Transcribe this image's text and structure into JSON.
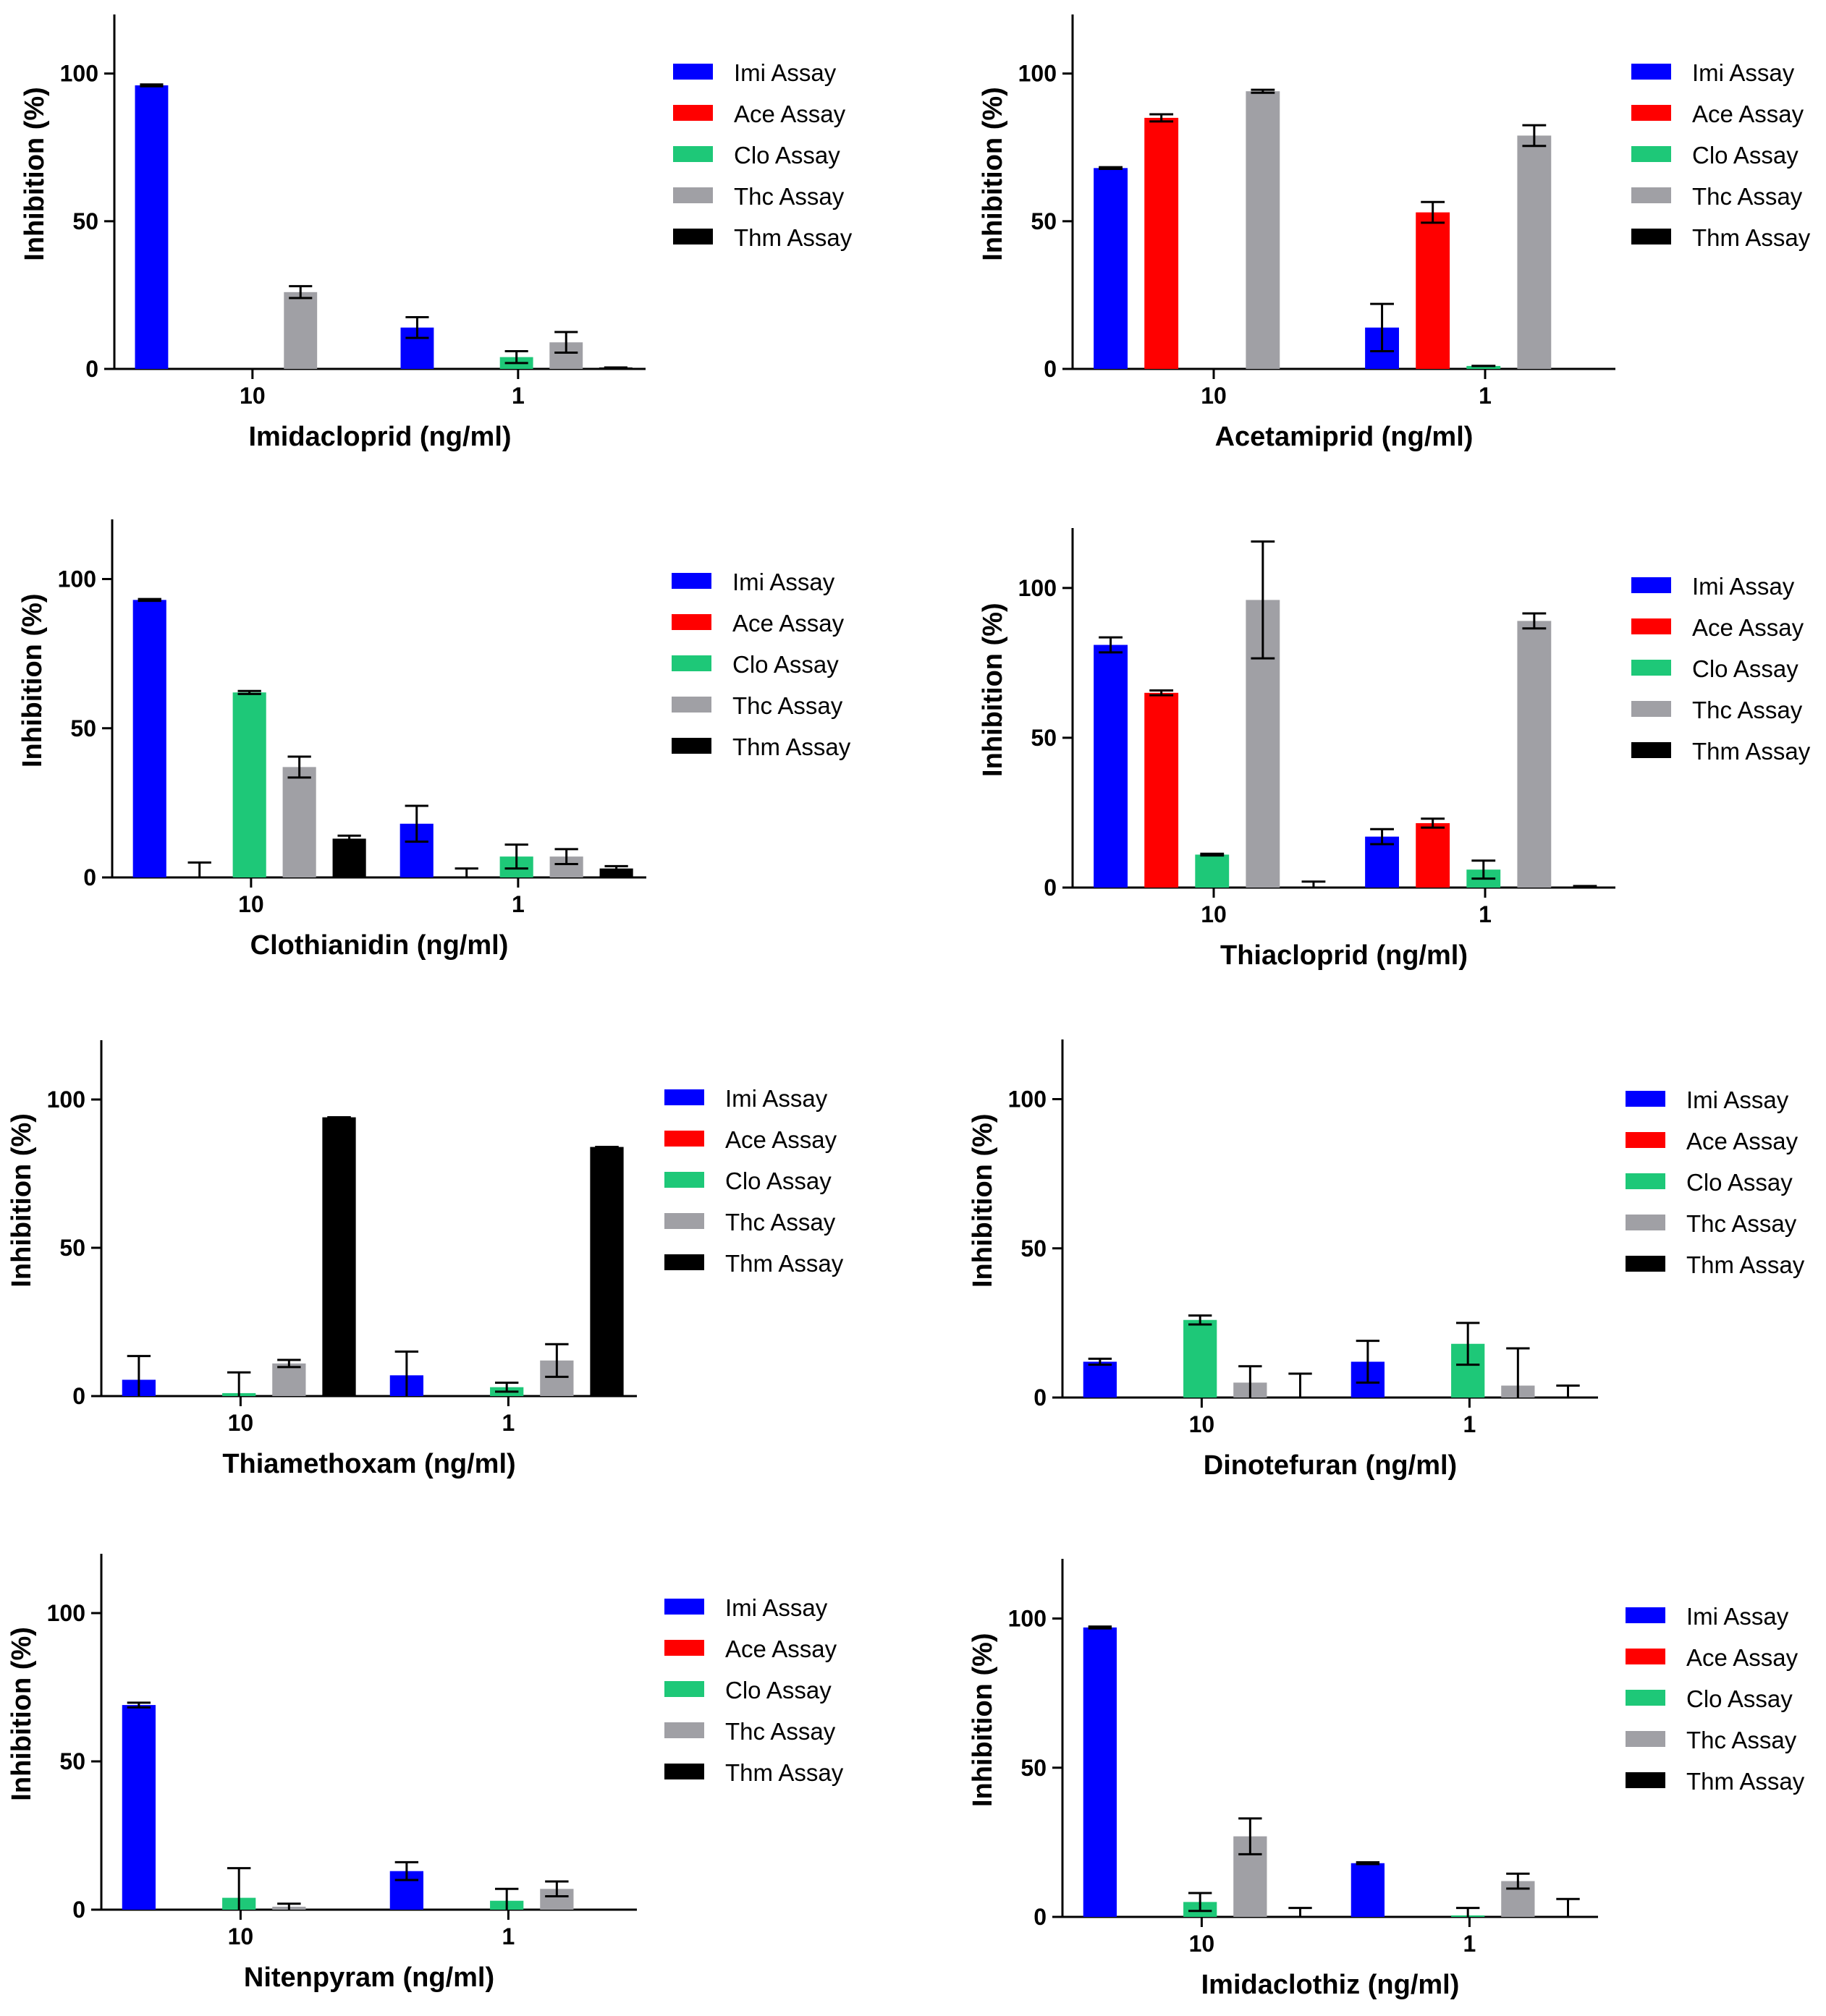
{
  "colors": {
    "Imi Assay": "#0000ff",
    "Ace Assay": "#ff0000",
    "Clo Assay": "#1ec878",
    "Thc Assay": "#a0a0a5",
    "Thm Assay": "#000000"
  },
  "chart_data": [
    {
      "type": "bar",
      "title": "",
      "xlabel": "Imidacloprid (ng/ml)",
      "ylabel": "Inhibition (%)",
      "ylim": [
        0,
        120
      ],
      "yticks": [
        "0",
        "50",
        "100"
      ],
      "categories": [
        "10",
        "1"
      ],
      "legend": [
        "Imi Assay",
        "Ace Assay",
        "Clo Assay",
        "Thc Assay",
        "Thm Assay"
      ],
      "series": [
        {
          "name": "Imi Assay",
          "values": [
            96,
            14
          ],
          "errors": [
            0.3,
            3.5
          ]
        },
        {
          "name": "Ace Assay",
          "values": [
            null,
            null
          ],
          "errors": [
            null,
            null
          ]
        },
        {
          "name": "Clo Assay",
          "values": [
            null,
            4
          ],
          "errors": [
            null,
            2
          ]
        },
        {
          "name": "Thc Assay",
          "values": [
            26,
            9
          ],
          "errors": [
            2,
            3.5
          ]
        },
        {
          "name": "Thm Assay",
          "values": [
            null,
            0.5
          ],
          "errors": [
            null,
            0
          ]
        }
      ]
    },
    {
      "type": "bar",
      "title": "",
      "xlabel": "Acetamiprid (ng/ml)",
      "ylabel": "Inhibition (%)",
      "ylim": [
        0,
        120
      ],
      "yticks": [
        "0",
        "50",
        "100"
      ],
      "categories": [
        "10",
        "1"
      ],
      "legend": [
        "Imi Assay",
        "Ace Assay",
        "Clo Assay",
        "Thc Assay",
        "Thm Assay"
      ],
      "series": [
        {
          "name": "Imi Assay",
          "values": [
            68,
            14
          ],
          "errors": [
            0.3,
            8
          ]
        },
        {
          "name": "Ace Assay",
          "values": [
            85,
            53
          ],
          "errors": [
            1.2,
            3.5
          ]
        },
        {
          "name": "Clo Assay",
          "values": [
            null,
            1
          ],
          "errors": [
            null,
            0
          ]
        },
        {
          "name": "Thc Assay",
          "values": [
            94,
            79
          ],
          "errors": [
            0.5,
            3.5
          ]
        },
        {
          "name": "Thm Assay",
          "values": [
            null,
            null
          ],
          "errors": [
            null,
            null
          ]
        }
      ]
    },
    {
      "type": "bar",
      "title": "",
      "xlabel": "Clothianidin (ng/ml)",
      "ylabel": "Inhibition (%)",
      "ylim": [
        0,
        120
      ],
      "yticks": [
        "0",
        "50",
        "100"
      ],
      "categories": [
        "10",
        "1"
      ],
      "legend": [
        "Imi Assay",
        "Ace Assay",
        "Clo Assay",
        "Thc Assay",
        "Thm Assay"
      ],
      "series": [
        {
          "name": "Imi Assay",
          "values": [
            93,
            18
          ],
          "errors": [
            0.3,
            6
          ]
        },
        {
          "name": "Ace Assay",
          "values": [
            0,
            0
          ],
          "errors": [
            5,
            3
          ]
        },
        {
          "name": "Clo Assay",
          "values": [
            62,
            7
          ],
          "errors": [
            0.5,
            4
          ]
        },
        {
          "name": "Thc Assay",
          "values": [
            37,
            7
          ],
          "errors": [
            3.5,
            2.5
          ]
        },
        {
          "name": "Thm Assay",
          "values": [
            13,
            3
          ],
          "errors": [
            1,
            0.8
          ]
        }
      ]
    },
    {
      "type": "bar",
      "title": "",
      "xlabel": "Thiacloprid (ng/ml)",
      "ylabel": "Inhibition (%)",
      "ylim": [
        0,
        120
      ],
      "yticks": [
        "0",
        "50",
        "100"
      ],
      "categories": [
        "10",
        "1"
      ],
      "legend": [
        "Imi Assay",
        "Ace Assay",
        "Clo Assay",
        "Thc Assay",
        "Thm Assay"
      ],
      "series": [
        {
          "name": "Imi Assay",
          "values": [
            81,
            17
          ],
          "errors": [
            2.5,
            2.5
          ]
        },
        {
          "name": "Ace Assay",
          "values": [
            65,
            21.5
          ],
          "errors": [
            0.8,
            1.5
          ]
        },
        {
          "name": "Clo Assay",
          "values": [
            11,
            6
          ],
          "errors": [
            0.3,
            3
          ]
        },
        {
          "name": "Thc Assay",
          "values": [
            96,
            89
          ],
          "errors": [
            19.5,
            2.5
          ]
        },
        {
          "name": "Thm Assay",
          "values": [
            0,
            0
          ],
          "errors": [
            2,
            0.5
          ]
        }
      ]
    },
    {
      "type": "bar",
      "title": "",
      "xlabel": "Thiamethoxam (ng/ml)",
      "ylabel": "Inhibition (%)",
      "ylim": [
        0,
        120
      ],
      "yticks": [
        "0",
        "50",
        "100"
      ],
      "categories": [
        "10",
        "1"
      ],
      "legend": [
        "Imi Assay",
        "Ace Assay",
        "Clo Assay",
        "Thc Assay",
        "Thm Assay"
      ],
      "series": [
        {
          "name": "Imi Assay",
          "values": [
            5.5,
            7
          ],
          "errors": [
            8,
            8
          ]
        },
        {
          "name": "Ace Assay",
          "values": [
            null,
            null
          ],
          "errors": [
            null,
            null
          ]
        },
        {
          "name": "Clo Assay",
          "values": [
            1,
            3
          ],
          "errors": [
            7,
            1.5
          ]
        },
        {
          "name": "Thc Assay",
          "values": [
            11,
            12
          ],
          "errors": [
            1.2,
            5.5
          ]
        },
        {
          "name": "Thm Assay",
          "values": [
            94,
            84
          ],
          "errors": [
            0,
            0
          ]
        }
      ]
    },
    {
      "type": "bar",
      "title": "",
      "xlabel": "Dinotefuran (ng/ml)",
      "ylabel": "Inhibition (%)",
      "ylim": [
        0,
        120
      ],
      "yticks": [
        "0",
        "50",
        "100"
      ],
      "categories": [
        "10",
        "1"
      ],
      "legend": [
        "Imi Assay",
        "Ace Assay",
        "Clo Assay",
        "Thc Assay",
        "Thm Assay"
      ],
      "series": [
        {
          "name": "Imi Assay",
          "values": [
            12,
            12
          ],
          "errors": [
            1,
            7
          ]
        },
        {
          "name": "Ace Assay",
          "values": [
            null,
            null
          ],
          "errors": [
            null,
            null
          ]
        },
        {
          "name": "Clo Assay",
          "values": [
            26,
            18
          ],
          "errors": [
            1.5,
            7
          ]
        },
        {
          "name": "Thc Assay",
          "values": [
            5,
            4
          ],
          "errors": [
            5.5,
            12.5
          ]
        },
        {
          "name": "Thm Assay",
          "values": [
            0,
            0
          ],
          "errors": [
            8,
            4
          ]
        }
      ]
    },
    {
      "type": "bar",
      "title": "",
      "xlabel": "Nitenpyram (ng/ml)",
      "ylabel": "Inhibition (%)",
      "ylim": [
        0,
        120
      ],
      "yticks": [
        "0",
        "50",
        "100"
      ],
      "categories": [
        "10",
        "1"
      ],
      "legend": [
        "Imi Assay",
        "Ace Assay",
        "Clo Assay",
        "Thc Assay",
        "Thm Assay"
      ],
      "series": [
        {
          "name": "Imi Assay",
          "values": [
            69,
            13
          ],
          "errors": [
            0.8,
            3
          ]
        },
        {
          "name": "Ace Assay",
          "values": [
            null,
            null
          ],
          "errors": [
            null,
            null
          ]
        },
        {
          "name": "Clo Assay",
          "values": [
            4,
            3
          ],
          "errors": [
            10,
            4
          ]
        },
        {
          "name": "Thc Assay",
          "values": [
            1,
            7
          ],
          "errors": [
            1,
            2.5
          ]
        },
        {
          "name": "Thm Assay",
          "values": [
            null,
            null
          ],
          "errors": [
            null,
            null
          ]
        }
      ]
    },
    {
      "type": "bar",
      "title": "",
      "xlabel": "Imidaclothiz (ng/ml)",
      "ylabel": "Inhibition (%)",
      "ylim": [
        0,
        120
      ],
      "yticks": [
        "0",
        "50",
        "100"
      ],
      "categories": [
        "10",
        "1"
      ],
      "legend": [
        "Imi Assay",
        "Ace Assay",
        "Clo Assay",
        "Thc Assay",
        "Thm Assay"
      ],
      "series": [
        {
          "name": "Imi Assay",
          "values": [
            97,
            18
          ],
          "errors": [
            0.3,
            0.3
          ]
        },
        {
          "name": "Ace Assay",
          "values": [
            null,
            null
          ],
          "errors": [
            null,
            null
          ]
        },
        {
          "name": "Clo Assay",
          "values": [
            5,
            0.5
          ],
          "errors": [
            3,
            2.5
          ]
        },
        {
          "name": "Thc Assay",
          "values": [
            27,
            12
          ],
          "errors": [
            6,
            2.5
          ]
        },
        {
          "name": "Thm Assay",
          "values": [
            0,
            0
          ],
          "errors": [
            3,
            6
          ]
        }
      ]
    }
  ]
}
